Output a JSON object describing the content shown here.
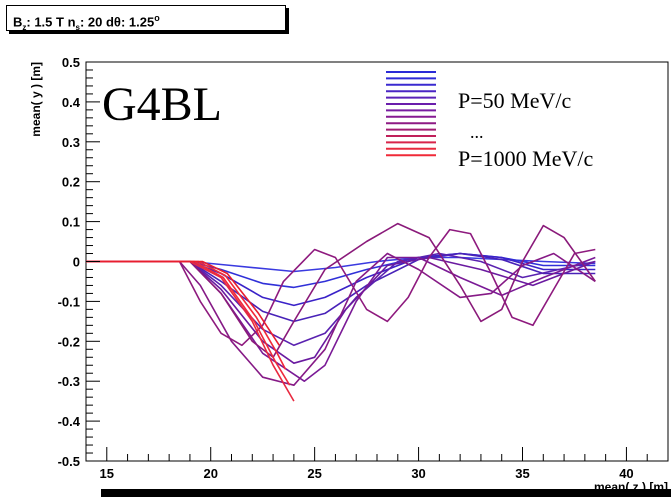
{
  "stats": {
    "label_b": "B",
    "sub_b": "z",
    "value_b": ": 1.5 T n",
    "sub_n": "s",
    "value_n": ": 20 dθ: 1.25",
    "deg": "o"
  },
  "chart_data": {
    "type": "line",
    "title": "G4BL",
    "xlabel": "mean( z ) [m]",
    "ylabel": "mean( y ) [m]",
    "xlim": [
      14,
      42
    ],
    "ylim": [
      -0.5,
      0.5
    ],
    "x_ticks": [
      "15",
      "20",
      "25",
      "30",
      "35",
      "40"
    ],
    "y_ticks": [
      "0.5",
      "0.4",
      "0.3",
      "0.2",
      "0.1",
      "0",
      "-0.1",
      "-0.2",
      "-0.3",
      "-0.4",
      "-0.5"
    ],
    "legend": {
      "position": "top-right",
      "top_label": "P=50 MeV/c",
      "dots": "...",
      "bottom_label": "P=1000 MeV/c"
    },
    "colors": {
      "low_momentum": "#2b2bd6",
      "mid_momentum": "#8a1a8a",
      "high_momentum": "#ee2030"
    },
    "series": [
      {
        "color": "#3a3ae0",
        "points": [
          [
            14,
            0
          ],
          [
            19,
            0
          ],
          [
            21,
            -0.01
          ],
          [
            23,
            -0.02
          ],
          [
            24,
            -0.025
          ],
          [
            26,
            -0.015
          ],
          [
            28,
            0
          ],
          [
            30,
            0.01
          ],
          [
            32,
            0.01
          ],
          [
            34,
            0.005
          ],
          [
            36,
            0
          ],
          [
            38.5,
            -0.005
          ]
        ]
      },
      {
        "color": "#3030d8",
        "points": [
          [
            14,
            0
          ],
          [
            19,
            0
          ],
          [
            20.5,
            -0.02
          ],
          [
            22.5,
            -0.055
          ],
          [
            24,
            -0.065
          ],
          [
            25.5,
            -0.05
          ],
          [
            27.5,
            -0.02
          ],
          [
            30,
            0.01
          ],
          [
            32,
            0.02
          ],
          [
            34,
            0.01
          ],
          [
            36,
            -0.01
          ],
          [
            38.5,
            -0.01
          ]
        ]
      },
      {
        "color": "#3a22c8",
        "points": [
          [
            14,
            0
          ],
          [
            19,
            0
          ],
          [
            20.5,
            -0.03
          ],
          [
            22.5,
            -0.09
          ],
          [
            24,
            -0.11
          ],
          [
            25.5,
            -0.09
          ],
          [
            27.5,
            -0.04
          ],
          [
            30,
            0.01
          ],
          [
            32,
            0.02
          ],
          [
            34,
            0.01
          ],
          [
            36,
            -0.02
          ],
          [
            38.5,
            -0.02
          ]
        ]
      },
      {
        "color": "#4822b8",
        "points": [
          [
            14,
            0
          ],
          [
            19,
            0
          ],
          [
            20.5,
            -0.05
          ],
          [
            22.5,
            -0.125
          ],
          [
            24,
            -0.15
          ],
          [
            25.5,
            -0.13
          ],
          [
            27.5,
            -0.06
          ],
          [
            30,
            0.005
          ],
          [
            32,
            0.02
          ],
          [
            34,
            0.005
          ],
          [
            36,
            -0.03
          ],
          [
            38.5,
            -0.03
          ]
        ]
      },
      {
        "color": "#5a22b0",
        "points": [
          [
            14,
            0
          ],
          [
            19,
            0
          ],
          [
            20.5,
            -0.06
          ],
          [
            22.5,
            -0.17
          ],
          [
            24,
            -0.21
          ],
          [
            25.5,
            -0.18
          ],
          [
            27,
            -0.09
          ],
          [
            29,
            0
          ],
          [
            31,
            0.02
          ],
          [
            33,
            0
          ],
          [
            35,
            -0.04
          ],
          [
            38.5,
            0
          ]
        ]
      },
      {
        "color": "#6a1aa0",
        "points": [
          [
            14,
            0
          ],
          [
            19,
            0
          ],
          [
            20.5,
            -0.07
          ],
          [
            22.5,
            -0.2
          ],
          [
            24,
            -0.255
          ],
          [
            25,
            -0.24
          ],
          [
            26.5,
            -0.12
          ],
          [
            28.5,
            -0.01
          ],
          [
            30.5,
            0.01
          ],
          [
            33,
            -0.02
          ],
          [
            35.5,
            -0.06
          ],
          [
            38.5,
            0
          ]
        ]
      },
      {
        "color": "#7a1a96",
        "points": [
          [
            14,
            0
          ],
          [
            19,
            0
          ],
          [
            20.5,
            -0.08
          ],
          [
            22.5,
            -0.23
          ],
          [
            24.5,
            -0.3
          ],
          [
            25.5,
            -0.26
          ],
          [
            27,
            -0.1
          ],
          [
            28.5,
            0.01
          ],
          [
            30,
            0.01
          ],
          [
            32,
            -0.04
          ],
          [
            34,
            -0.085
          ],
          [
            36,
            -0.04
          ],
          [
            38.5,
            0.01
          ]
        ]
      },
      {
        "color": "#861a86",
        "points": [
          [
            14,
            0
          ],
          [
            18.5,
            0
          ],
          [
            19.5,
            -0.06
          ],
          [
            21,
            -0.2
          ],
          [
            22.5,
            -0.29
          ],
          [
            24,
            -0.31
          ],
          [
            25.5,
            -0.22
          ],
          [
            27,
            -0.05
          ],
          [
            28.5,
            0.02
          ],
          [
            30,
            -0.02
          ],
          [
            32,
            -0.09
          ],
          [
            33.5,
            -0.08
          ],
          [
            35,
            -0.01
          ],
          [
            36.5,
            0.02
          ],
          [
            38.5,
            -0.05
          ]
        ]
      },
      {
        "color": "#8e1a7e",
        "points": [
          [
            14,
            0
          ],
          [
            18.5,
            0
          ],
          [
            19.5,
            -0.1
          ],
          [
            20.5,
            -0.18
          ],
          [
            21.5,
            -0.21
          ],
          [
            22.5,
            -0.16
          ],
          [
            23.5,
            -0.05
          ],
          [
            25,
            0.03
          ],
          [
            26,
            0.01
          ],
          [
            27.5,
            -0.12
          ],
          [
            28.5,
            -0.15
          ],
          [
            29.5,
            -0.09
          ],
          [
            30.5,
            0.01
          ],
          [
            31.5,
            0.08
          ],
          [
            32.5,
            0.07
          ],
          [
            33.5,
            -0.03
          ],
          [
            34.5,
            -0.14
          ],
          [
            35.5,
            -0.16
          ],
          [
            36.5,
            -0.07
          ],
          [
            37.5,
            0.02
          ],
          [
            38.5,
            0.03
          ]
        ]
      },
      {
        "color": "#8a1a7a",
        "points": [
          [
            14,
            0
          ],
          [
            19,
            0
          ],
          [
            20.5,
            -0.08
          ],
          [
            22,
            -0.2
          ],
          [
            23,
            -0.24
          ],
          [
            24,
            -0.15
          ],
          [
            25.5,
            -0.02
          ],
          [
            27.5,
            0.05
          ],
          [
            29,
            0.095
          ],
          [
            30.5,
            0.06
          ],
          [
            32,
            -0.06
          ],
          [
            33,
            -0.15
          ],
          [
            34,
            -0.12
          ],
          [
            35,
            0
          ],
          [
            36,
            0.09
          ],
          [
            37,
            0.06
          ],
          [
            38.5,
            -0.05
          ]
        ]
      },
      {
        "color": "#e82a40",
        "points": [
          [
            14,
            0
          ],
          [
            19,
            0
          ],
          [
            20.5,
            -0.04
          ],
          [
            22,
            -0.15
          ],
          [
            23,
            -0.26
          ],
          [
            24,
            -0.35
          ]
        ]
      },
      {
        "color": "#ee2a3c",
        "points": [
          [
            14,
            0
          ],
          [
            19.2,
            0
          ],
          [
            20.6,
            -0.04
          ],
          [
            22.1,
            -0.15
          ],
          [
            23.1,
            -0.25
          ],
          [
            23.8,
            -0.31
          ]
        ]
      },
      {
        "color": "#f22838",
        "points": [
          [
            14,
            0
          ],
          [
            19.4,
            0
          ],
          [
            20.7,
            -0.035
          ],
          [
            22.2,
            -0.14
          ],
          [
            23.2,
            -0.23
          ],
          [
            23.6,
            -0.27
          ]
        ]
      },
      {
        "color": "#e81e2e",
        "points": [
          [
            14,
            0
          ],
          [
            19.6,
            0
          ],
          [
            20.8,
            -0.03
          ],
          [
            22.3,
            -0.13
          ],
          [
            23.3,
            -0.21
          ]
        ]
      }
    ]
  }
}
